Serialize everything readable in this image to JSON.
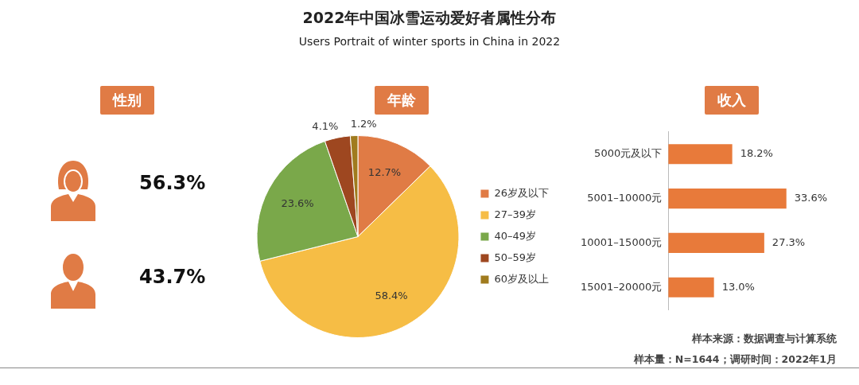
{
  "chart_data": [
    {
      "type": "other",
      "title": "2022年中国冰雪运动爱好者属性分布",
      "subtitle": "Users Portrait of winter sports in China in 2022",
      "annotations": [
        "样本来源：数据调查与计算系统",
        "样本量：N=1644；调研时间：2022年1月"
      ]
    },
    {
      "type": "other",
      "title": "性别",
      "categories": [
        null,
        null
      ],
      "values": [
        56.3,
        43.7
      ],
      "value_labels": [
        "56.3%",
        "43.7%"
      ],
      "color": "#e07b45"
    },
    {
      "type": "pie",
      "title": "年龄",
      "categories": [
        "26岁及以下",
        "27–39岁",
        "40–49岁",
        "50–59岁",
        "60岁及以上"
      ],
      "values": [
        12.7,
        58.4,
        23.6,
        4.1,
        1.2
      ],
      "colors": [
        "#e07b45",
        "#f6bd45",
        "#7aa84a",
        "#9e4720",
        "#a07b1e"
      ],
      "value_labels": [
        "12.7%",
        "58.4%",
        "23.6%",
        "4.1%",
        "1.2%"
      ],
      "legend": "right"
    },
    {
      "type": "bar",
      "orientation": "horizontal",
      "title": "收入",
      "categories": [
        "5000元及以下",
        "5001–10000元",
        "10001–15000元",
        "15001–20000元"
      ],
      "values": [
        18.2,
        33.6,
        27.3,
        13.0
      ],
      "value_labels": [
        "18.2%",
        "33.6%",
        "27.3%",
        "13.0%"
      ],
      "color": "#e87a3a",
      "tick_labels": "y",
      "grid": false,
      "legend": false
    }
  ]
}
